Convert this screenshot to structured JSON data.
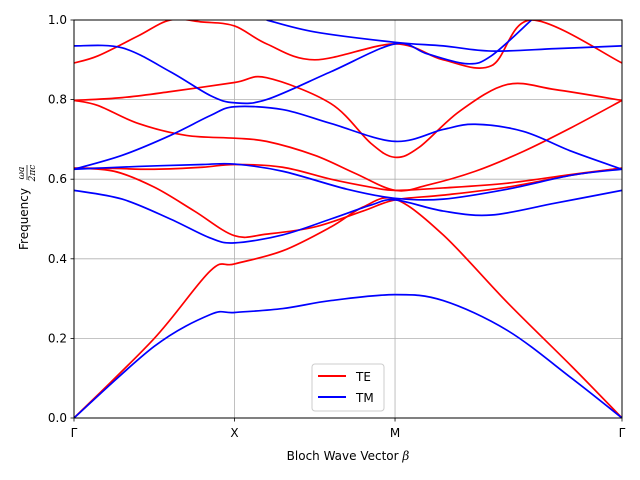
{
  "chart_data": {
    "type": "line",
    "xlabel": "Bloch Wave Vector",
    "xlabel_symbol": "β",
    "ylabel": "Frequency",
    "ylabel_fraction": {
      "numerator": "ωa",
      "denominator": "2πc"
    },
    "x_ticks": [
      {
        "pos": 0,
        "label": "Γ"
      },
      {
        "pos": 1,
        "label": "X"
      },
      {
        "pos": 2,
        "label": "M"
      },
      {
        "pos": 3.414,
        "label": "Γ"
      }
    ],
    "xlim": [
      0,
      3.414
    ],
    "ylim": [
      0,
      1.0
    ],
    "y_ticks": [
      "0.0",
      "0.2",
      "0.4",
      "0.6",
      "0.8",
      "1.0"
    ],
    "grid": true,
    "legend_position": "bottom-center",
    "series": [
      {
        "name": "TE",
        "color": "#ff0000",
        "bands": [
          [
            [
              0,
              0
            ],
            [
              0.5,
              0.2
            ],
            [
              0.85,
              0.37
            ],
            [
              1,
              0.387
            ],
            [
              1.3,
              0.42
            ],
            [
              1.6,
              0.48
            ],
            [
              1.8,
              0.53
            ],
            [
              2,
              0.55
            ],
            [
              2.3,
              0.46
            ],
            [
              2.7,
              0.29
            ],
            [
              3.1,
              0.13
            ],
            [
              3.414,
              0
            ]
          ],
          [
            [
              0,
              0.628
            ],
            [
              0.25,
              0.62
            ],
            [
              0.5,
              0.58
            ],
            [
              0.75,
              0.52
            ],
            [
              1,
              0.458
            ],
            [
              1.2,
              0.462
            ],
            [
              1.5,
              0.48
            ],
            [
              1.8,
              0.52
            ],
            [
              2,
              0.548
            ],
            [
              2.3,
              0.56
            ],
            [
              2.7,
              0.58
            ],
            [
              3.1,
              0.61
            ],
            [
              3.414,
              0.628
            ]
          ],
          [
            [
              0,
              0.628
            ],
            [
              0.25,
              0.627
            ],
            [
              0.5,
              0.625
            ],
            [
              0.8,
              0.63
            ],
            [
              1,
              0.637
            ],
            [
              1.3,
              0.63
            ],
            [
              1.6,
              0.6
            ],
            [
              1.85,
              0.58
            ],
            [
              2,
              0.572
            ],
            [
              2.3,
              0.578
            ],
            [
              2.7,
              0.59
            ],
            [
              3.1,
              0.612
            ],
            [
              3.414,
              0.628
            ]
          ],
          [
            [
              0,
              0.798
            ],
            [
              0.15,
              0.785
            ],
            [
              0.4,
              0.74
            ],
            [
              0.7,
              0.71
            ],
            [
              1,
              0.703
            ],
            [
              1.2,
              0.695
            ],
            [
              1.5,
              0.66
            ],
            [
              1.75,
              0.615
            ],
            [
              2,
              0.572
            ],
            [
              2.2,
              0.585
            ],
            [
              2.5,
              0.62
            ],
            [
              2.8,
              0.67
            ],
            [
              3.1,
              0.73
            ],
            [
              3.414,
              0.798
            ]
          ],
          [
            [
              0,
              0.798
            ],
            [
              0.3,
              0.805
            ],
            [
              0.6,
              0.82
            ],
            [
              1,
              0.843
            ],
            [
              1.2,
              0.855
            ],
            [
              1.6,
              0.79
            ],
            [
              1.85,
              0.69
            ],
            [
              2,
              0.655
            ],
            [
              2.15,
              0.68
            ],
            [
              2.4,
              0.77
            ],
            [
              2.7,
              0.838
            ],
            [
              3.0,
              0.825
            ],
            [
              3.414,
              0.798
            ]
          ],
          [
            [
              0,
              0.892
            ],
            [
              0.15,
              0.91
            ],
            [
              0.4,
              0.96
            ],
            [
              0.6,
              1.0
            ],
            [
              0.8,
              0.995
            ],
            [
              1,
              0.985
            ],
            [
              1.2,
              0.94
            ],
            [
              1.5,
              0.9
            ],
            [
              2,
              0.94
            ],
            [
              2.3,
              0.9
            ],
            [
              2.6,
              0.885
            ],
            [
              2.85,
              1.0
            ],
            [
              3.414,
              0.892
            ]
          ]
        ]
      },
      {
        "name": "TM",
        "color": "#0000ff",
        "bands": [
          [
            [
              0,
              0
            ],
            [
              0.5,
              0.18
            ],
            [
              0.85,
              0.26
            ],
            [
              1,
              0.265
            ],
            [
              1.3,
              0.275
            ],
            [
              1.6,
              0.295
            ],
            [
              2,
              0.31
            ],
            [
              2.3,
              0.295
            ],
            [
              2.7,
              0.22
            ],
            [
              3.1,
              0.1
            ],
            [
              3.414,
              0
            ]
          ],
          [
            [
              0,
              0.572
            ],
            [
              0.3,
              0.55
            ],
            [
              0.6,
              0.5
            ],
            [
              0.85,
              0.452
            ],
            [
              1,
              0.44
            ],
            [
              1.3,
              0.46
            ],
            [
              1.6,
              0.5
            ],
            [
              1.85,
              0.535
            ],
            [
              2,
              0.548
            ],
            [
              2.3,
              0.52
            ],
            [
              2.6,
              0.51
            ],
            [
              3,
              0.54
            ],
            [
              3.414,
              0.572
            ]
          ],
          [
            [
              0,
              0.625
            ],
            [
              0.4,
              0.632
            ],
            [
              0.8,
              0.637
            ],
            [
              1,
              0.638
            ],
            [
              1.3,
              0.62
            ],
            [
              1.7,
              0.575
            ],
            [
              2,
              0.552
            ],
            [
              2.3,
              0.55
            ],
            [
              2.7,
              0.575
            ],
            [
              3.1,
              0.61
            ],
            [
              3.414,
              0.625
            ]
          ],
          [
            [
              0,
              0.625
            ],
            [
              0.3,
              0.66
            ],
            [
              0.6,
              0.71
            ],
            [
              0.85,
              0.76
            ],
            [
              1,
              0.782
            ],
            [
              1.3,
              0.775
            ],
            [
              1.6,
              0.74
            ],
            [
              2,
              0.695
            ],
            [
              2.3,
              0.725
            ],
            [
              2.5,
              0.738
            ],
            [
              2.8,
              0.72
            ],
            [
              3.1,
              0.67
            ],
            [
              3.414,
              0.625
            ]
          ],
          [
            [
              0,
              0.935
            ],
            [
              0.3,
              0.93
            ],
            [
              0.6,
              0.87
            ],
            [
              0.85,
              0.81
            ],
            [
              1,
              0.792
            ],
            [
              1.2,
              0.8
            ],
            [
              1.6,
              0.87
            ],
            [
              2,
              0.94
            ],
            [
              2.2,
              0.915
            ],
            [
              2.45,
              0.89
            ],
            [
              2.6,
              0.91
            ],
            [
              2.85,
              1.0
            ]
          ],
          [
            [
              1.2,
              1.0
            ],
            [
              1.5,
              0.97
            ],
            [
              2,
              0.944
            ],
            [
              2.3,
              0.935
            ],
            [
              2.6,
              0.922
            ],
            [
              3.0,
              0.928
            ],
            [
              3.414,
              0.935
            ]
          ]
        ]
      }
    ]
  }
}
